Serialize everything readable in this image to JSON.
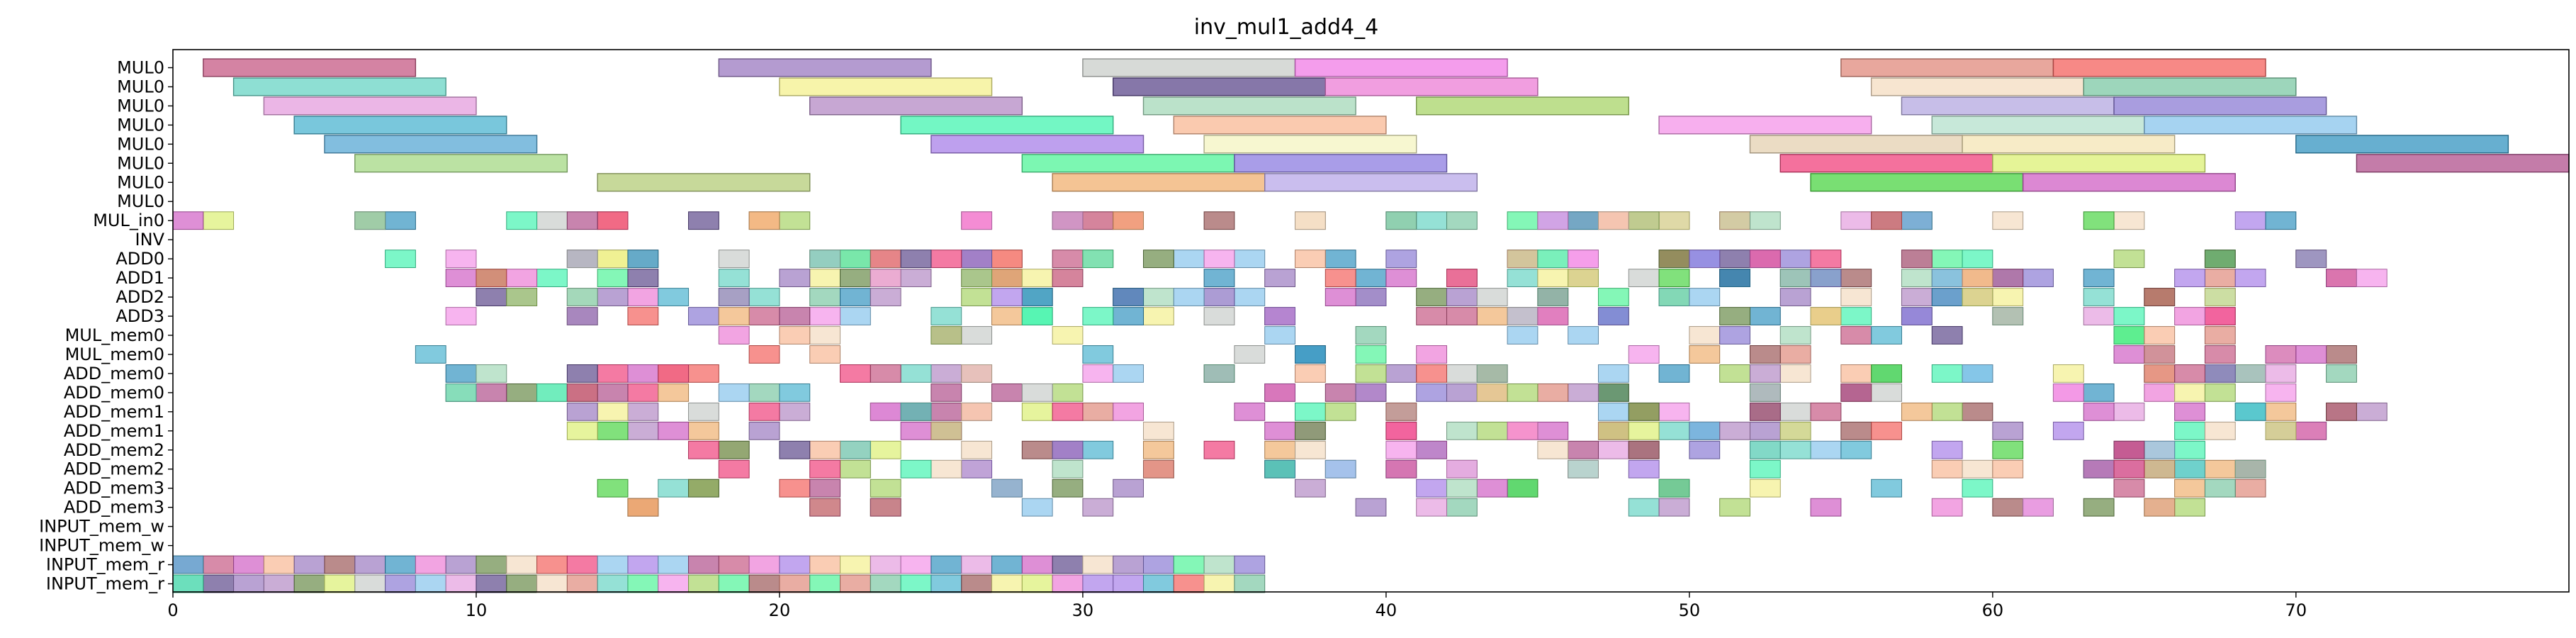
{
  "chart_data": {
    "type": "gantt",
    "title": "inv_mul1_add4_4",
    "xlim": [
      0,
      79
    ],
    "xticks": [
      0,
      10,
      20,
      30,
      40,
      50,
      60,
      70
    ],
    "grid": false,
    "rows": [
      "MUL0",
      "MUL0",
      "MUL0",
      "MUL0",
      "MUL0",
      "MUL0",
      "MUL0",
      "MUL0",
      "MUL_in0",
      "INV",
      "ADD0",
      "ADD1",
      "ADD2",
      "ADD3",
      "MUL_mem0",
      "MUL_mem0",
      "ADD_mem0",
      "ADD_mem0",
      "ADD_mem1",
      "ADD_mem1",
      "ADD_mem2",
      "ADD_mem2",
      "ADD_mem3",
      "ADD_mem3",
      "INPUT_mem_w",
      "INPUT_mem_w",
      "INPUT_mem_r",
      "INPUT_mem_r"
    ],
    "long_tasks": [
      {
        "row": 0,
        "start": 1,
        "end": 8,
        "color": "#c65a84"
      },
      {
        "row": 0,
        "start": 18,
        "end": 25,
        "color": "#9b7ac0"
      },
      {
        "row": 0,
        "start": 30,
        "end": 37,
        "color": "#c9cdca"
      },
      {
        "row": 0,
        "start": 37,
        "end": 44,
        "color": "#f07ce6"
      },
      {
        "row": 0,
        "start": 55,
        "end": 62,
        "color": "#e08a7c"
      },
      {
        "row": 0,
        "start": 62,
        "end": 69,
        "color": "#f4625e"
      },
      {
        "row": 1,
        "start": 2,
        "end": 9,
        "color": "#68d4c4"
      },
      {
        "row": 1,
        "start": 20,
        "end": 27,
        "color": "#f4f08e"
      },
      {
        "row": 1,
        "start": 31,
        "end": 38,
        "color": "#5e4a8c"
      },
      {
        "row": 1,
        "start": 38,
        "end": 45,
        "color": "#ec7ed6"
      },
      {
        "row": 1,
        "start": 56,
        "end": 63,
        "color": "#f4dcc0"
      },
      {
        "row": 1,
        "start": 63,
        "end": 70,
        "color": "#7cc8a4"
      },
      {
        "row": 2,
        "start": 3,
        "end": 10,
        "color": "#e49ede"
      },
      {
        "row": 2,
        "start": 21,
        "end": 28,
        "color": "#b48ac4"
      },
      {
        "row": 2,
        "start": 32,
        "end": 39,
        "color": "#a4d8b8"
      },
      {
        "row": 2,
        "start": 41,
        "end": 48,
        "color": "#a8d468"
      },
      {
        "row": 2,
        "start": 57,
        "end": 64,
        "color": "#b4a8e0"
      },
      {
        "row": 2,
        "start": 64,
        "end": 71,
        "color": "#8c7cd4"
      },
      {
        "row": 3,
        "start": 4,
        "end": 11,
        "color": "#4cb4d0"
      },
      {
        "row": 3,
        "start": 24,
        "end": 31,
        "color": "#44f4b0"
      },
      {
        "row": 3,
        "start": 33,
        "end": 40,
        "color": "#f8b894"
      },
      {
        "row": 3,
        "start": 49,
        "end": 56,
        "color": "#f494e8"
      },
      {
        "row": 3,
        "start": 58,
        "end": 65,
        "color": "#b4e0cc"
      },
      {
        "row": 3,
        "start": 65,
        "end": 72,
        "color": "#88c4ec"
      },
      {
        "row": 4,
        "start": 5,
        "end": 12,
        "color": "#58a8d4"
      },
      {
        "row": 4,
        "start": 25,
        "end": 32,
        "color": "#a880e8"
      },
      {
        "row": 4,
        "start": 34,
        "end": 41,
        "color": "#f4f4c0"
      },
      {
        "row": 4,
        "start": 52,
        "end": 59,
        "color": "#e4d0b0"
      },
      {
        "row": 4,
        "start": 59,
        "end": 66,
        "color": "#f4e4b4"
      },
      {
        "row": 4,
        "start": 70,
        "end": 77,
        "color": "#3494c0"
      },
      {
        "row": 5,
        "start": 6,
        "end": 13,
        "color": "#a4d884"
      },
      {
        "row": 5,
        "start": 28,
        "end": 35,
        "color": "#50f498"
      },
      {
        "row": 5,
        "start": 35,
        "end": 42,
        "color": "#8c7ce0"
      },
      {
        "row": 5,
        "start": 53,
        "end": 60,
        "color": "#f0427c"
      },
      {
        "row": 5,
        "start": 60,
        "end": 67,
        "color": "#dcf074"
      },
      {
        "row": 5,
        "start": 72,
        "end": 79,
        "color": "#b0508c"
      },
      {
        "row": 6,
        "start": 14,
        "end": 21,
        "color": "#b4cc78"
      },
      {
        "row": 6,
        "start": 29,
        "end": 36,
        "color": "#f0b070"
      },
      {
        "row": 6,
        "start": 36,
        "end": 43,
        "color": "#b8a8e8"
      },
      {
        "row": 6,
        "start": 54,
        "end": 61,
        "color": "#4cd444"
      },
      {
        "row": 6,
        "start": 61,
        "end": 68,
        "color": "#d060c4"
      }
    ],
    "cell_counts": {
      "MUL_in0": 54,
      "ADD0": 57,
      "ADD1": 61,
      "ADD2": 52,
      "ADD3": 46,
      "MUL_mem0": 42,
      "ADD_mem0": 97,
      "ADD_mem1": 86,
      "ADD_mem2": 76,
      "ADD_mem3": 53,
      "INPUT_mem_r": 74
    }
  }
}
